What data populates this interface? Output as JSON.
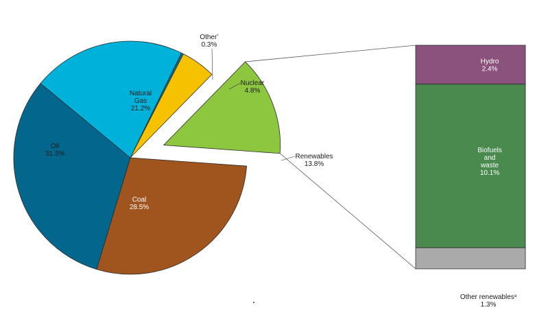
{
  "chart_data": {
    "type": "pie",
    "slices": [
      {
        "name": "Other",
        "marker": "*",
        "value": 0.3,
        "label": "0.3%",
        "color": "#0e6e8a"
      },
      {
        "name": "Nuclear",
        "value": 4.8,
        "label": "4.8%",
        "color": "#f6c200"
      },
      {
        "name": "Renewables",
        "value": 13.8,
        "label": "13.8%",
        "color": "#8dc63f",
        "exploded": true
      },
      {
        "name": "Coal",
        "value": 28.5,
        "label": "28.5%",
        "color": "#a0541e"
      },
      {
        "name": "Oil",
        "value": 31.3,
        "label": "31.3%",
        "color": "#03668c"
      },
      {
        "name": "Natural Gas",
        "value": 21.2,
        "label": "21.2%",
        "color": "#00b1d9"
      }
    ],
    "breakdown": {
      "of": "Renewables",
      "type": "stacked-bar",
      "segments": [
        {
          "name": "Hydro",
          "value": 2.4,
          "label": "2.4%",
          "color": "#8b527d"
        },
        {
          "name": "Biofuels and waste",
          "value": 10.1,
          "label": "10.1%",
          "color": "#4a8a4f"
        },
        {
          "name": "Other renewables",
          "marker": "a",
          "value": 1.3,
          "label": "1.3%",
          "color": "#aaaaaa"
        }
      ]
    }
  }
}
